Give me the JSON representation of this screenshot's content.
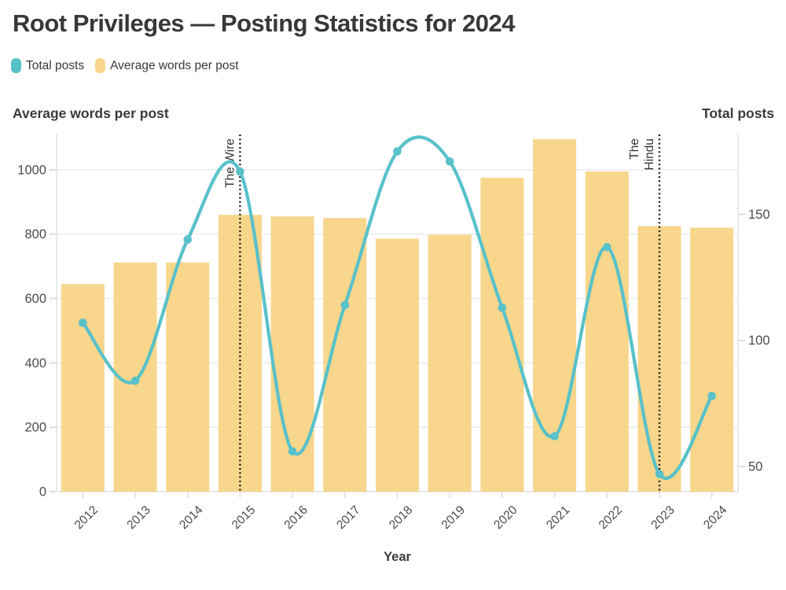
{
  "title": "Root Privileges — Posting Statistics for 2024",
  "legend": {
    "items": [
      {
        "label": "Total posts",
        "color": "#58c1c9"
      },
      {
        "label": "Average words per post",
        "color": "#f8d68c"
      }
    ]
  },
  "axes": {
    "left": {
      "title": "Average words per post",
      "ticks": [
        0,
        200,
        400,
        600,
        800,
        1000
      ]
    },
    "right": {
      "title": "Total posts",
      "ticks": [
        50,
        100,
        150
      ]
    },
    "x": {
      "title": "Year"
    }
  },
  "annotations": [
    {
      "category": "2015",
      "lines": [
        "The Wire"
      ]
    },
    {
      "category": "2023",
      "lines": [
        "The",
        "Hindu"
      ]
    }
  ],
  "chart_data": {
    "type": "bar+line",
    "title": "Root Privileges — Posting Statistics for 2024",
    "categories": [
      "2012",
      "2013",
      "2014",
      "2015",
      "2016",
      "2017",
      "2018",
      "2019",
      "2020",
      "2021",
      "2022",
      "2023",
      "2024"
    ],
    "series": [
      {
        "name": "Average words per post",
        "type": "bar",
        "axis": "left",
        "color": "#f8d68c",
        "values": [
          645,
          712,
          712,
          860,
          855,
          850,
          786,
          798,
          975,
          1095,
          995,
          825,
          820
        ]
      },
      {
        "name": "Total posts",
        "type": "line",
        "axis": "right",
        "color": "#58c1c9",
        "values": [
          107,
          84,
          140,
          167,
          56,
          114,
          175,
          171,
          113,
          62,
          137,
          47,
          78
        ]
      }
    ],
    "xlabel": "Year",
    "ylabel_left": "Average words per post",
    "ylabel_right": "Total posts",
    "left_ylim": [
      0,
      1112
    ],
    "right_ylim": [
      40,
      182
    ],
    "left_ticks": [
      0,
      200,
      400,
      600,
      800,
      1000
    ],
    "right_ticks": [
      50,
      100,
      150
    ],
    "grid": "horizontal",
    "legend_position": "top-left",
    "annotations": [
      {
        "category": "2015",
        "label": "The Wire"
      },
      {
        "category": "2023",
        "label": "The Hindu"
      }
    ]
  }
}
